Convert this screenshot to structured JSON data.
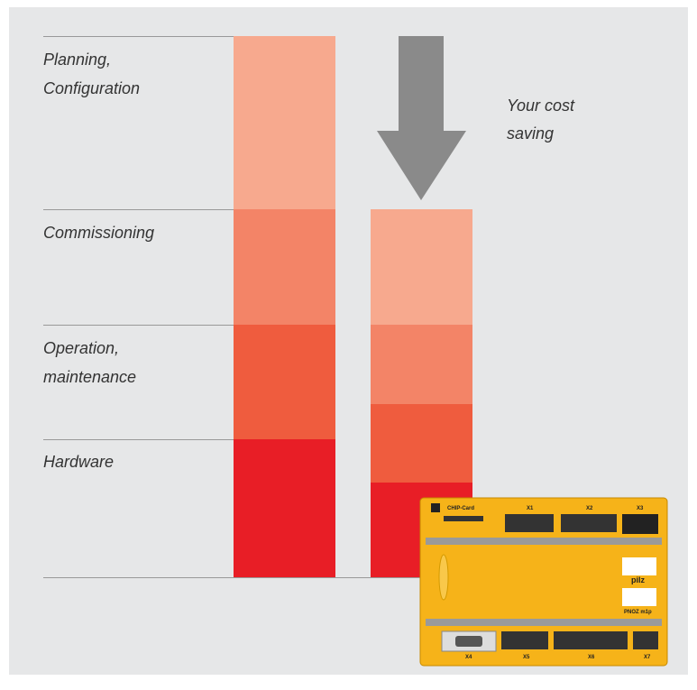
{
  "labels": {
    "planning": [
      "Planning,",
      "Configuration"
    ],
    "commissioning": "Commissioning",
    "operation": [
      "Operation,",
      "maintenance"
    ],
    "hardware": "Hardware",
    "saving": [
      "Your cost",
      "saving"
    ]
  },
  "device": {
    "card": "CHIP-Card",
    "ports": [
      "X1",
      "X2",
      "X3",
      "X4",
      "X5",
      "X6",
      "X7"
    ],
    "brand": "pilz",
    "model": "PNOZ m1p"
  }
}
